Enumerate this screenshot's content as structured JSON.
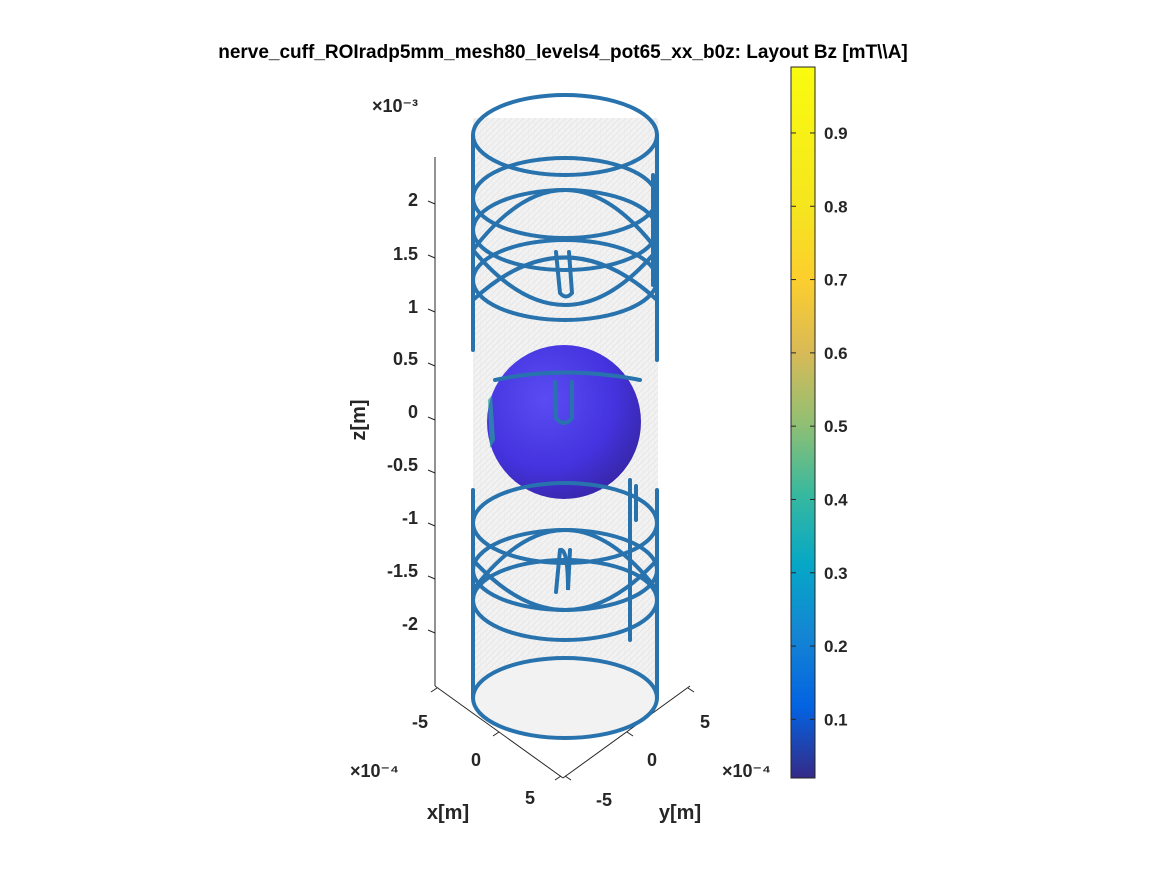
{
  "chart_data": {
    "type": "surface3d",
    "title": "nerve_cuff_ROIradp5mm_mesh80_levels4_pot65_xx_b0z: Layout Bz [mT\\\\A]",
    "xlabel": "x[m]",
    "ylabel": "y[m]",
    "zlabel": "z[m]",
    "x_exponent": "×10⁻⁴",
    "y_exponent": "×10⁻⁴",
    "z_exponent": "×10⁻³",
    "x_ticks": [
      -5,
      0,
      5
    ],
    "y_ticks": [
      -5,
      0,
      5
    ],
    "z_ticks": [
      2,
      1.5,
      1,
      0.5,
      0,
      -0.5,
      -1,
      -1.5,
      -2
    ],
    "x_tick_labels": [
      "-5",
      "0",
      "5"
    ],
    "y_tick_labels": [
      "-5",
      "0",
      "5"
    ],
    "z_tick_labels": [
      "2",
      "1.5",
      "1",
      "0.5",
      "0",
      "-0.5",
      "-1",
      "-1.5",
      "-2"
    ],
    "zlim": [
      -2.5,
      2.5
    ],
    "colorbar": {
      "colormap": "parula",
      "range": [
        0.02,
        0.99
      ],
      "ticks": [
        0.1,
        0.2,
        0.3,
        0.4,
        0.5,
        0.6,
        0.7,
        0.8,
        0.9
      ],
      "tick_labels": [
        "0.1",
        "0.2",
        "0.3",
        "0.4",
        "0.5",
        "0.6",
        "0.7",
        "0.8",
        "0.9"
      ]
    },
    "roi_sphere": {
      "value_min": 0.13,
      "value_max": 0.25,
      "color": "#4b3fe0"
    },
    "cylinder_color": "#eeeeee",
    "coil_color": "#2873ad",
    "grid": false
  }
}
